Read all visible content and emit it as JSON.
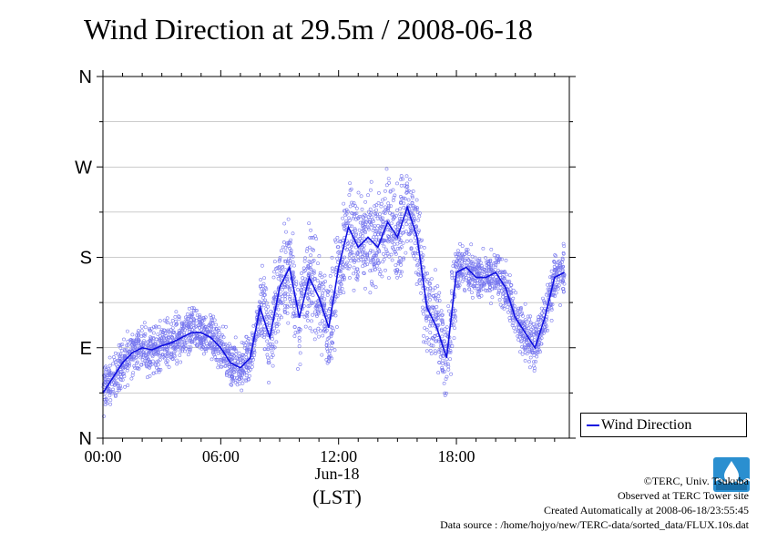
{
  "title": "Wind Direction at 29.5m / 2008-06-18",
  "legend": {
    "label": "Wind Direction",
    "placement": "right-bottom"
  },
  "x_axis": {
    "ticks": [
      "00:00",
      "06:00",
      "12:00",
      "18:00"
    ],
    "date_label": "Jun-18",
    "unit_label": "(LST)"
  },
  "y_axis": {
    "ticks": [
      "N",
      "E",
      "S",
      "W",
      "N"
    ]
  },
  "credits": {
    "line1": "©TERC, Univ. Tsukuba",
    "line2": "Observed at TERC Tower site",
    "line3": "Created Automatically at 2008-06-18/23:55:45",
    "line4": "Data source : /home/hojyo/new/TERC-data/sorted_data/FLUX.10s.dat"
  },
  "colors": {
    "line": "#1010e0",
    "points": "#7777ee",
    "grid": "#999999",
    "logo": "#2a8fd0"
  },
  "chart_data": {
    "type": "line",
    "title": "Wind Direction at 29.5m / 2008-06-18",
    "xlabel": "(LST)",
    "ylabel": "",
    "xlim": [
      0,
      23.75
    ],
    "ylim": [
      0,
      360
    ],
    "x_tick_values": [
      0,
      6,
      12,
      18
    ],
    "y_tick_values": [
      0,
      90,
      180,
      270,
      360
    ],
    "grid": true,
    "series": [
      {
        "name": "Wind Direction",
        "x": [
          0,
          0.5,
          1,
          1.5,
          2,
          2.5,
          3,
          3.5,
          4,
          4.5,
          5,
          5.5,
          6,
          6.5,
          7,
          7.5,
          8,
          8.5,
          9,
          9.5,
          10,
          10.5,
          11,
          11.5,
          12,
          12.5,
          13,
          13.5,
          14,
          14.5,
          15,
          15.5,
          16,
          16.5,
          17,
          17.5,
          18,
          18.5,
          19,
          19.5,
          20,
          20.5,
          21,
          21.5,
          22,
          22.5,
          23,
          23.5
        ],
        "values": [
          45,
          60,
          75,
          85,
          90,
          88,
          92,
          95,
          100,
          105,
          105,
          100,
          90,
          75,
          70,
          80,
          130,
          100,
          150,
          170,
          120,
          160,
          140,
          110,
          170,
          210,
          190,
          200,
          190,
          215,
          200,
          230,
          200,
          130,
          110,
          80,
          165,
          170,
          160,
          160,
          165,
          150,
          120,
          105,
          90,
          120,
          160,
          165
        ]
      }
    ]
  }
}
